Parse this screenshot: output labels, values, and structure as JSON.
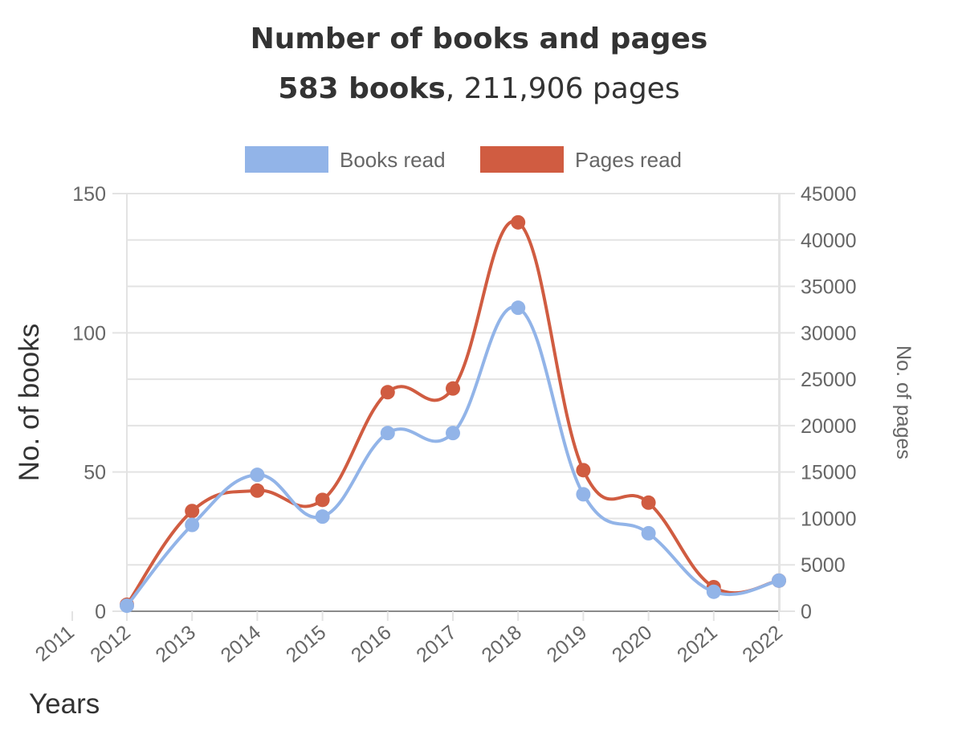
{
  "header": {
    "title": "Number of books and pages",
    "subtitle_bold": "583 books",
    "subtitle_sep": ",",
    "subtitle_rest": "211,906 pages"
  },
  "chart_data": {
    "type": "line",
    "x": [
      "2011",
      "2012",
      "2013",
      "2014",
      "2015",
      "2016",
      "2017",
      "2018",
      "2019",
      "2020",
      "2021",
      "2022"
    ],
    "xlabel": "Years",
    "series": [
      {
        "name": "Books read",
        "axis": "left",
        "color": "#92b4e8",
        "points": [
          [
            2012,
            2
          ],
          [
            2013,
            31
          ],
          [
            2014,
            49
          ],
          [
            2015,
            34
          ],
          [
            2016,
            64
          ],
          [
            2017,
            64
          ],
          [
            2018,
            109
          ],
          [
            2019,
            42
          ],
          [
            2020,
            28
          ],
          [
            2021,
            7
          ],
          [
            2022,
            11
          ]
        ]
      },
      {
        "name": "Pages read",
        "axis": "right",
        "color": "#d05c41",
        "points": [
          [
            2012,
            700
          ],
          [
            2013,
            10800
          ],
          [
            2014,
            13000
          ],
          [
            2015,
            12000
          ],
          [
            2016,
            23600
          ],
          [
            2017,
            24000
          ],
          [
            2018,
            41900
          ],
          [
            2019,
            15200
          ],
          [
            2020,
            11700
          ],
          [
            2021,
            2600
          ],
          [
            2022,
            3300
          ]
        ]
      }
    ],
    "y_left": {
      "label": "No. of books",
      "min": 0,
      "max": 150,
      "ticks": [
        "0",
        "50",
        "100",
        "150"
      ]
    },
    "y_right": {
      "label": "No. of pages",
      "min": 0,
      "max": 45000,
      "ticks": [
        "0",
        "5000",
        "10000",
        "15000",
        "20000",
        "25000",
        "30000",
        "35000",
        "40000",
        "45000"
      ]
    },
    "legend_position": "top",
    "grid": true
  }
}
